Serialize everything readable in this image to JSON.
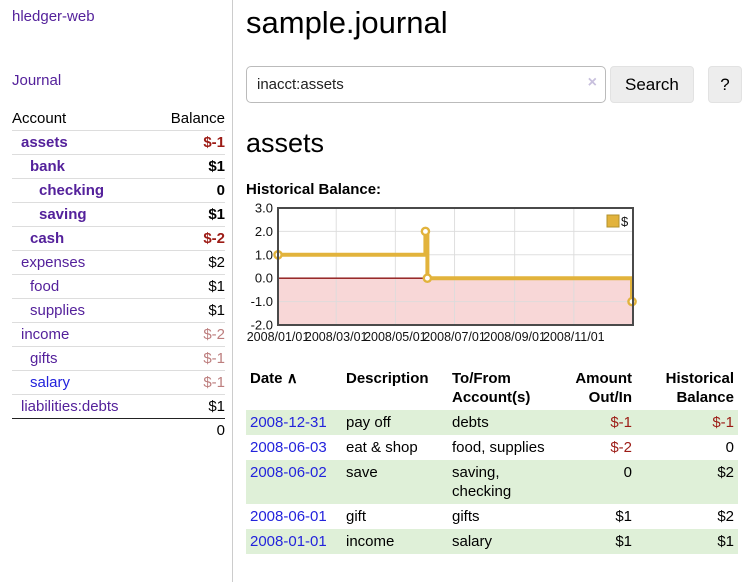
{
  "app": {
    "title": "hledger-web",
    "journal_link": "Journal"
  },
  "colors": {
    "link_purple": "#54219b",
    "link_blue": "#2323dc",
    "negative_strong": "#9c1b15",
    "negative_muted": "#bd7e7e",
    "row_green": "#dff0d8",
    "chart_line": "#e2b33c",
    "chart_negative_fill": "#f8d7d7",
    "chart_zero_line": "#8b1212"
  },
  "sidebar": {
    "accounts_header": {
      "account": "Account",
      "balance": "Balance"
    },
    "accounts": [
      {
        "name": "assets",
        "balance": "$-1",
        "depth": 1,
        "bold": true,
        "name_color": "purple",
        "balance_color": "negative"
      },
      {
        "name": "bank",
        "balance": "$1",
        "depth": 2,
        "bold": true,
        "name_color": "purple",
        "balance_color": "normal"
      },
      {
        "name": "checking",
        "balance": "0",
        "depth": 3,
        "bold": true,
        "name_color": "purple",
        "balance_color": "normal"
      },
      {
        "name": "saving",
        "balance": "$1",
        "depth": 3,
        "bold": true,
        "name_color": "purple",
        "balance_color": "normal"
      },
      {
        "name": "cash",
        "balance": "$-2",
        "depth": 2,
        "bold": true,
        "name_color": "purple",
        "balance_color": "negative"
      },
      {
        "name": "expenses",
        "balance": "$2",
        "depth": 1,
        "bold": false,
        "name_color": "purple",
        "balance_color": "normal"
      },
      {
        "name": "food",
        "balance": "$1",
        "depth": 2,
        "bold": false,
        "name_color": "purple",
        "balance_color": "normal"
      },
      {
        "name": "supplies",
        "balance": "$1",
        "depth": 2,
        "bold": false,
        "name_color": "purple",
        "balance_color": "normal"
      },
      {
        "name": "income",
        "balance": "$-2",
        "depth": 1,
        "bold": false,
        "name_color": "purple",
        "balance_color": "negative_muted"
      },
      {
        "name": "gifts",
        "balance": "$-1",
        "depth": 2,
        "bold": false,
        "name_color": "purple",
        "balance_color": "negative_muted"
      },
      {
        "name": "salary",
        "balance": "$-1",
        "depth": 2,
        "bold": false,
        "name_color": "blue",
        "balance_color": "negative_muted"
      },
      {
        "name": "liabilities:debts",
        "balance": "$1",
        "depth": 1,
        "bold": false,
        "name_color": "purple",
        "balance_color": "normal"
      }
    ],
    "total": "0"
  },
  "main": {
    "title": "sample.journal",
    "search": {
      "value": "inacct:assets",
      "clear_icon": "×",
      "button": "Search",
      "help_button": "?"
    },
    "account_heading": "assets",
    "chart_label": "Historical Balance:"
  },
  "chart_data": {
    "type": "line",
    "step": true,
    "title": "Historical Balance",
    "x_range": [
      "2008-01-01",
      "2009-01-01"
    ],
    "ylim": [
      -2,
      3
    ],
    "y_ticks": [
      3.0,
      2.0,
      1.0,
      0.0,
      -1.0,
      -2.0
    ],
    "x_ticks": [
      {
        "label": "2008/01/01",
        "date": "2008-01-01"
      },
      {
        "label": "2008/03/01",
        "date": "2008-03-01"
      },
      {
        "label": "2008/05/01",
        "date": "2008-05-01"
      },
      {
        "label": "2008/07/01",
        "date": "2008-07-01"
      },
      {
        "label": "2008/09/01",
        "date": "2008-09-01"
      },
      {
        "label": "2008/11/01",
        "date": "2008-11-01"
      }
    ],
    "legend": {
      "label": "$",
      "position": "top-right"
    },
    "grid": true,
    "series": [
      {
        "name": "$",
        "points": [
          {
            "x": "2008-01-01",
            "y": 1
          },
          {
            "x": "2008-06-01",
            "y": 2
          },
          {
            "x": "2008-06-02",
            "y": 2
          },
          {
            "x": "2008-06-03",
            "y": 0
          },
          {
            "x": "2008-12-31",
            "y": -1
          }
        ]
      }
    ]
  },
  "register": {
    "headers": [
      "Date",
      "Description",
      "To/From Account(s)",
      "Amount Out/In",
      "Historical Balance"
    ],
    "sort_icon": "∧",
    "rows": [
      {
        "date": "2008-12-31",
        "description": "pay off",
        "accounts": "debts",
        "amount": "$-1",
        "amount_color": "negative",
        "balance": "$-1",
        "balance_color": "negative"
      },
      {
        "date": "2008-06-03",
        "description": "eat & shop",
        "accounts": "food, supplies",
        "amount": "$-2",
        "amount_color": "negative",
        "balance": "0",
        "balance_color": "normal"
      },
      {
        "date": "2008-06-02",
        "description": "save",
        "accounts": "saving, checking",
        "amount": "0",
        "amount_color": "normal",
        "balance": "$2",
        "balance_color": "normal"
      },
      {
        "date": "2008-06-01",
        "description": "gift",
        "accounts": "gifts",
        "amount": "$1",
        "amount_color": "normal",
        "balance": "$2",
        "balance_color": "normal"
      },
      {
        "date": "2008-01-01",
        "description": "income",
        "accounts": "salary",
        "amount": "$1",
        "amount_color": "normal",
        "balance": "$1",
        "balance_color": "normal"
      }
    ]
  }
}
